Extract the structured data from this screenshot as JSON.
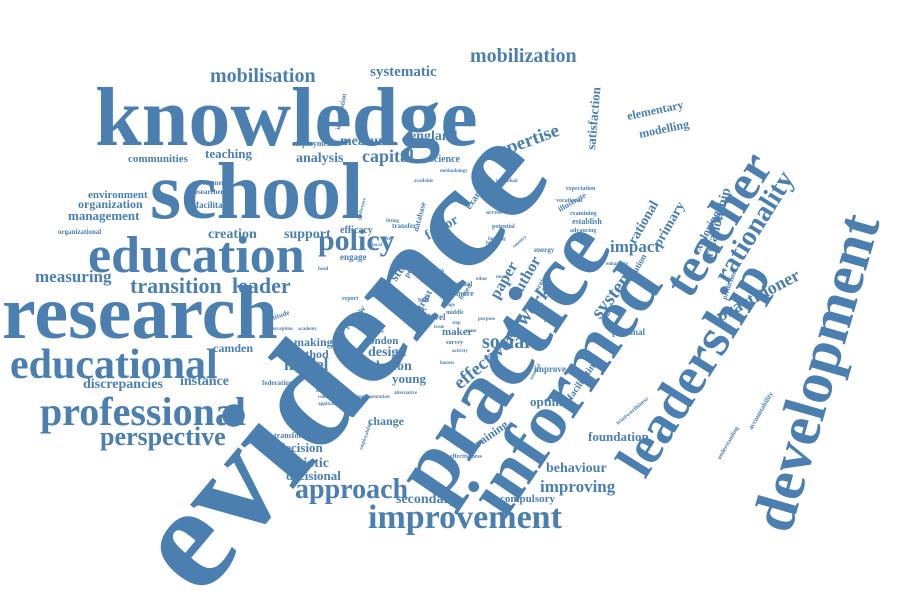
{
  "words": {
    "evidence": "evidence",
    "knowledge": "knowledge",
    "school": "school",
    "research": "research",
    "education": "education",
    "practice": "practice",
    "informed": "informed",
    "development": "development",
    "leadership": "leadership",
    "teacher": "teacher",
    "educational": "educational",
    "professional": "professional",
    "improvement": "improvement",
    "approach": "approach",
    "perspective": "perspective",
    "policy": "policy",
    "transition": "transition",
    "leader": "leader",
    "measuring": "measuring",
    "mobilisation": "mobilisation",
    "mobilization": "mobilization",
    "systematic": "systematic",
    "expertise": "expertise",
    "rationality": "rationality",
    "practitioner": "practitioner",
    "relationship": "relationship",
    "network": "network",
    "system": "system",
    "impact": "impact",
    "social": "social",
    "effective": "effective",
    "capital": "capital",
    "analysis": "analysis",
    "measure": "measure",
    "england": "england",
    "teaching": "teaching",
    "communities": "communities",
    "creation": "creation",
    "support": "support",
    "management": "management",
    "organization": "organization",
    "environment": "environment",
    "camden": "camden",
    "instance": "instance",
    "discrepancies": "discrepancies",
    "model": "model",
    "design": "design",
    "lesson": "lesson",
    "young": "young",
    "london": "london",
    "making": "making",
    "method": "method",
    "decision": "decision",
    "semiotic": "semiotic",
    "decisional": "decisional",
    "secondary": "secondary",
    "compulsory": "compulsory",
    "improving": "improving",
    "behaviour": "behaviour",
    "foundation": "foundation",
    "optimal": "optimal",
    "change": "change",
    "training": "training",
    "elementary": "elementary",
    "modelling": "modelling",
    "satisfaction": "satisfaction",
    "rational": "rational",
    "primary": "primary",
    "exploring": "exploring",
    "facilitate": "facilitate",
    "facilitating": "facilitating",
    "examine": "examine",
    "paper": "paper",
    "author": "author",
    "factor": "factor",
    "study": "study",
    "year": "year",
    "efficacy": "efficacy",
    "engage": "engage",
    "review": "review",
    "maker": "maker",
    "level": "level",
    "trust": "trust",
    "science": "science",
    "employment": "employment",
    "intervention": "intervention",
    "government": "government",
    "researcher": "researcher",
    "organizational": "organizational",
    "transforming": "transforming",
    "personal": "personal",
    "relation": "relation",
    "prediction": "prediction",
    "accountability": "accountability",
    "understanding": "understanding",
    "establish": "establish",
    "improve": "improve",
    "data": "data",
    "federation": "federation",
    "attitude": "attitude",
    "effectiveness": "effectiveness",
    "illustrate": "illustrate",
    "expectation": "expectation",
    "vocational": "vocational",
    "advancing": "advancing",
    "examining": "examining",
    "database": "database",
    "transfer": "transfer",
    "self": "self",
    "post": "post",
    "work": "work",
    "more": "more",
    "actual": "actual",
    "based": "based",
    "project": "project",
    "energy": "energy",
    "potential": "potential",
    "access": "access",
    "finding": "finding",
    "trustworthiness": "trustworthiness",
    "perception": "perception",
    "collaboration": "collaboration",
    "applicability": "applicability",
    "implementation": "implementation",
    "alternative": "alternative",
    "employability": "employability",
    "innovation": "innovation",
    "academy": "academy",
    "national": "national",
    "enhancing": "enhancing",
    "report": "report",
    "middle": "middle",
    "survey": "survey",
    "activity": "activity",
    "explore": "explore",
    "purpose": "purpose",
    "methodology": "methodology",
    "individual": "individual",
    "available": "available",
    "preference": "preference",
    "focusing": "focusing",
    "country": "country",
    "adoption": "adoption",
    "issue": "issue",
    "stage": "stage",
    "hour": "hour",
    "user": "user",
    "local": "local",
    "link": "link",
    "head": "head",
    "ethos": "ethos",
    "tested": "tested",
    "hasten": "hasten",
    "fitting": "fitting",
    "mean": "mean",
    "step": "step",
    "team": "team"
  }
}
